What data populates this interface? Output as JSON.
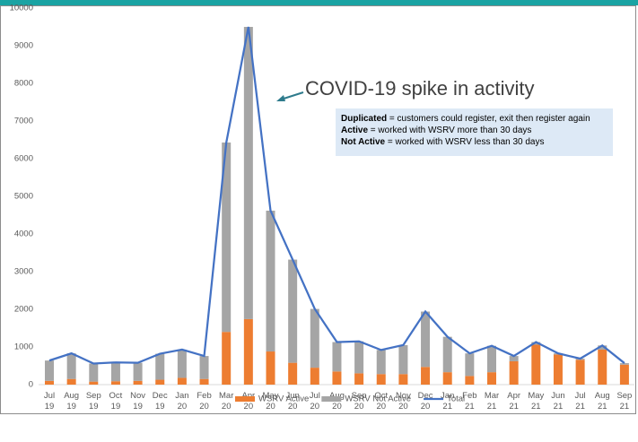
{
  "chart_data": {
    "type": "bar-line",
    "categories": [
      "Jul 19",
      "Aug 19",
      "Sep 19",
      "Oct 19",
      "Nov 19",
      "Dec 19",
      "Jan 20",
      "Feb 20",
      "Mar 20",
      "Apr 20",
      "May 20",
      "Jun 20",
      "Jul 20",
      "Aug 20",
      "Sep 20",
      "Oct 20",
      "Nov 20",
      "Dec 20",
      "Jan 21",
      "Feb 21",
      "Mar 21",
      "Apr 21",
      "May 21",
      "Jun 21",
      "Jul 21",
      "Aug 21",
      "Sep 21"
    ],
    "series": [
      {
        "name": "WSRV Active",
        "color": "#ed7d31",
        "kind": "bar",
        "values": [
          100,
          150,
          80,
          90,
          100,
          130,
          180,
          150,
          1400,
          1740,
          880,
          580,
          450,
          350,
          300,
          280,
          280,
          470,
          330,
          230,
          330,
          620,
          1060,
          800,
          660,
          930,
          530
        ]
      },
      {
        "name": "WSRV Not Active",
        "color": "#a5a5a5",
        "kind": "bar",
        "values": [
          540,
          680,
          480,
          500,
          480,
          690,
          750,
          610,
          5030,
          7760,
          3740,
          2740,
          1560,
          780,
          850,
          640,
          770,
          1470,
          940,
          600,
          700,
          140,
          70,
          30,
          30,
          110,
          40
        ]
      },
      {
        "name": "Total",
        "color": "#4472c4",
        "kind": "line",
        "values": [
          640,
          830,
          560,
          590,
          580,
          820,
          930,
          760,
          6430,
          9500,
          4620,
          3320,
          2010,
          1130,
          1150,
          920,
          1050,
          1940,
          1270,
          830,
          1030,
          760,
          1130,
          830,
          690,
          1040,
          570
        ]
      }
    ],
    "ylim": [
      0,
      10000
    ],
    "yticks": [
      0,
      1000,
      2000,
      3000,
      4000,
      5000,
      6000,
      7000,
      8000,
      9000,
      10000
    ],
    "grid": false,
    "legend": "bottom",
    "annotation": "COVID-19 spike in activity",
    "notes": [
      {
        "term": "Duplicated",
        "text": " = customers could register, exit then register again"
      },
      {
        "term": "Active",
        "text": " = worked with WSRV more than 30 days"
      },
      {
        "term": "Not Active",
        "text": " = worked with WSRV less than 30 days"
      }
    ]
  }
}
